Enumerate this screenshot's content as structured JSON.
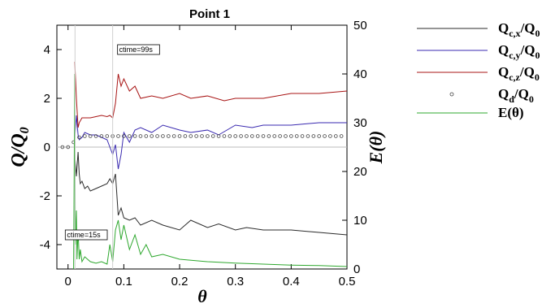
{
  "chart_data": {
    "type": "line",
    "title": "Point 1",
    "xlabel": "θ",
    "ylabel_left": "Q/Q0",
    "ylabel_right": "E(θ)",
    "xlim": [
      -0.02,
      0.5
    ],
    "ylim_left": [
      -5,
      5
    ],
    "ylim_right": [
      0,
      50
    ],
    "x_ticks": [
      "0",
      "0.1",
      "0.2",
      "0.3",
      "0.4",
      "0.5"
    ],
    "y_ticks_left": [
      "4",
      "2",
      "0",
      "-2",
      "-4"
    ],
    "y_ticks_right": [
      "50",
      "40",
      "30",
      "20",
      "10",
      "0"
    ],
    "grid": false,
    "legend_position": "outside-right",
    "legend": [
      {
        "label": "Qc,x/Q0",
        "color": "#2b2b2b",
        "style": "line"
      },
      {
        "label": "Qc,y/Q0",
        "color": "#3a2ab0",
        "style": "line"
      },
      {
        "label": "Qc,z/Q0",
        "color": "#a81414",
        "style": "line"
      },
      {
        "label": "Qd/Q0",
        "color": "#444444",
        "style": "marker"
      },
      {
        "label": "E(θ)",
        "color": "#2fa82f",
        "style": "line"
      }
    ],
    "annotations": [
      {
        "text": "ctime=99s",
        "x": 0.08
      },
      {
        "text": "ctime=15s",
        "x": 0.0125
      }
    ],
    "series": [
      {
        "name": "Qc,x/Q0",
        "axis": "left",
        "color": "#2b2b2b",
        "x": [
          0.012,
          0.015,
          0.018,
          0.02,
          0.022,
          0.025,
          0.03,
          0.035,
          0.04,
          0.05,
          0.06,
          0.07,
          0.075,
          0.08,
          0.085,
          0.09,
          0.095,
          0.1,
          0.11,
          0.12,
          0.13,
          0.15,
          0.17,
          0.2,
          0.22,
          0.25,
          0.27,
          0.3,
          0.32,
          0.35,
          0.4,
          0.45,
          0.5
        ],
        "y": [
          -0.3,
          -1.2,
          -0.2,
          -1.1,
          -1.5,
          -1.4,
          -1.7,
          -1.6,
          -1.8,
          -1.7,
          -1.6,
          -1.5,
          -1.3,
          -1.5,
          -1.1,
          -2.8,
          -2.5,
          -2.9,
          -3.0,
          -2.9,
          -3.2,
          -3.0,
          -3.2,
          -3.4,
          -3.0,
          -3.3,
          -3.15,
          -3.4,
          -3.3,
          -3.4,
          -3.4,
          -3.5,
          -3.6
        ]
      },
      {
        "name": "Qc,y/Q0",
        "axis": "left",
        "color": "#3a2ab0",
        "x": [
          0.012,
          0.015,
          0.018,
          0.02,
          0.025,
          0.03,
          0.04,
          0.05,
          0.06,
          0.07,
          0.075,
          0.08,
          0.085,
          0.09,
          0.095,
          0.1,
          0.11,
          0.12,
          0.13,
          0.15,
          0.17,
          0.2,
          0.22,
          0.25,
          0.27,
          0.3,
          0.33,
          0.35,
          0.4,
          0.45,
          0.5
        ],
        "y": [
          0.3,
          1.3,
          0.5,
          0.3,
          0.4,
          0.6,
          0.5,
          0.5,
          0.4,
          0.3,
          0.0,
          -0.3,
          0.1,
          -0.9,
          -0.3,
          0.6,
          0.2,
          0.7,
          0.8,
          0.6,
          0.9,
          0.7,
          0.6,
          0.7,
          0.5,
          0.9,
          0.8,
          0.9,
          0.9,
          1.0,
          1.0
        ]
      },
      {
        "name": "Qc,z/Q0",
        "axis": "left",
        "color": "#a81414",
        "x": [
          0.012,
          0.015,
          0.018,
          0.02,
          0.025,
          0.03,
          0.04,
          0.05,
          0.06,
          0.07,
          0.075,
          0.08,
          0.085,
          0.09,
          0.095,
          0.1,
          0.11,
          0.12,
          0.13,
          0.15,
          0.17,
          0.2,
          0.22,
          0.25,
          0.28,
          0.3,
          0.35,
          0.4,
          0.45,
          0.5
        ],
        "y": [
          3.5,
          2.0,
          0.8,
          1.0,
          1.2,
          1.2,
          1.2,
          1.25,
          1.3,
          1.25,
          1.3,
          1.2,
          1.8,
          3.0,
          2.5,
          2.8,
          2.3,
          2.5,
          2.0,
          2.1,
          2.0,
          2.2,
          2.0,
          2.1,
          1.9,
          2.0,
          2.0,
          2.2,
          2.2,
          2.3
        ]
      },
      {
        "name": "Qd/Q0",
        "axis": "left",
        "color": "#444444",
        "x": [
          -0.01,
          0,
          0.01,
          0.02,
          0.03,
          0.04,
          0.05,
          0.06,
          0.07,
          0.08,
          0.09,
          0.1,
          0.11,
          0.12,
          0.13,
          0.14,
          0.15,
          0.16,
          0.17,
          0.18,
          0.19,
          0.2,
          0.21,
          0.22,
          0.23,
          0.24,
          0.25,
          0.26,
          0.27,
          0.28,
          0.29,
          0.3,
          0.31,
          0.32,
          0.33,
          0.34,
          0.35,
          0.36,
          0.37,
          0.38,
          0.39,
          0.4,
          0.41,
          0.42,
          0.43,
          0.44,
          0.45,
          0.46,
          0.47,
          0.48,
          0.49
        ],
        "y": [
          0,
          0,
          0.2,
          0.4,
          0.45,
          0.45,
          0.45,
          0.45,
          0.45,
          0.45,
          0.45,
          0.45,
          0.45,
          0.45,
          0.45,
          0.45,
          0.45,
          0.45,
          0.45,
          0.45,
          0.45,
          0.45,
          0.45,
          0.45,
          0.45,
          0.45,
          0.45,
          0.45,
          0.45,
          0.45,
          0.45,
          0.45,
          0.45,
          0.45,
          0.45,
          0.45,
          0.45,
          0.45,
          0.45,
          0.45,
          0.45,
          0.45,
          0.45,
          0.45,
          0.45,
          0.45,
          0.45,
          0.45,
          0.45,
          0.45,
          0.45
        ]
      },
      {
        "name": "E(θ)",
        "axis": "right",
        "color": "#2fa82f",
        "x": [
          0.01,
          0.012,
          0.013,
          0.015,
          0.016,
          0.018,
          0.02,
          0.022,
          0.025,
          0.03,
          0.04,
          0.05,
          0.06,
          0.07,
          0.075,
          0.08,
          0.085,
          0.09,
          0.095,
          0.1,
          0.11,
          0.12,
          0.13,
          0.14,
          0.15,
          0.17,
          0.2,
          0.25,
          0.3,
          0.35,
          0.4,
          0.45,
          0.5
        ],
        "y": [
          0,
          40,
          5,
          12,
          2,
          8,
          2,
          4,
          1.5,
          2.5,
          1.5,
          1.2,
          1.5,
          1,
          5,
          1.5,
          8,
          10,
          6,
          9,
          4,
          7,
          3,
          5,
          2.5,
          3,
          2,
          1.5,
          1.2,
          1,
          0.8,
          0.7,
          0.5
        ]
      }
    ]
  }
}
